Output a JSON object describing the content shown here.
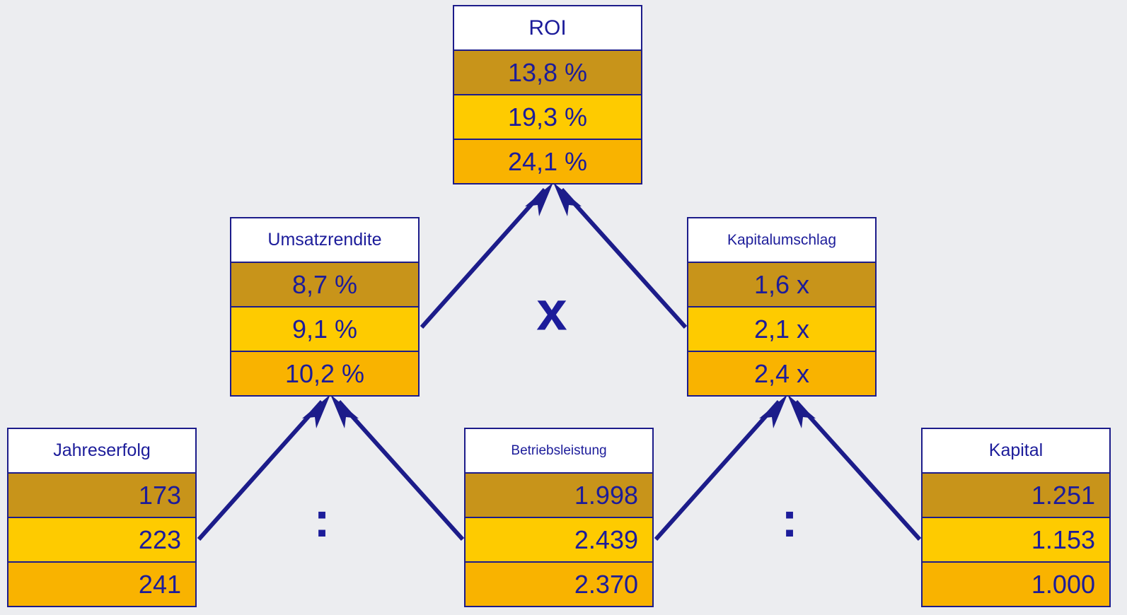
{
  "nodes": [
    {
      "label": "ROI",
      "values": [
        "13,8 %",
        "19,3 %",
        "24,1 %"
      ]
    },
    {
      "label": "Umsatzrendite",
      "values": [
        "8,7 %",
        "9,1 %",
        "10,2 %"
      ]
    },
    {
      "label": "Kapitalumschlag",
      "values": [
        "1,6 x",
        "2,1 x",
        "2,4 x"
      ]
    },
    {
      "label": "Jahreserfolg",
      "values": [
        "173",
        "223",
        "241"
      ]
    },
    {
      "label": "Betriebsleistung",
      "values": [
        "1.998",
        "2.439",
        "2.370"
      ]
    },
    {
      "label": "Kapital",
      "values": [
        "1.251",
        "1.153",
        "1.000"
      ]
    }
  ],
  "operators": [
    "x",
    ":",
    ":"
  ]
}
